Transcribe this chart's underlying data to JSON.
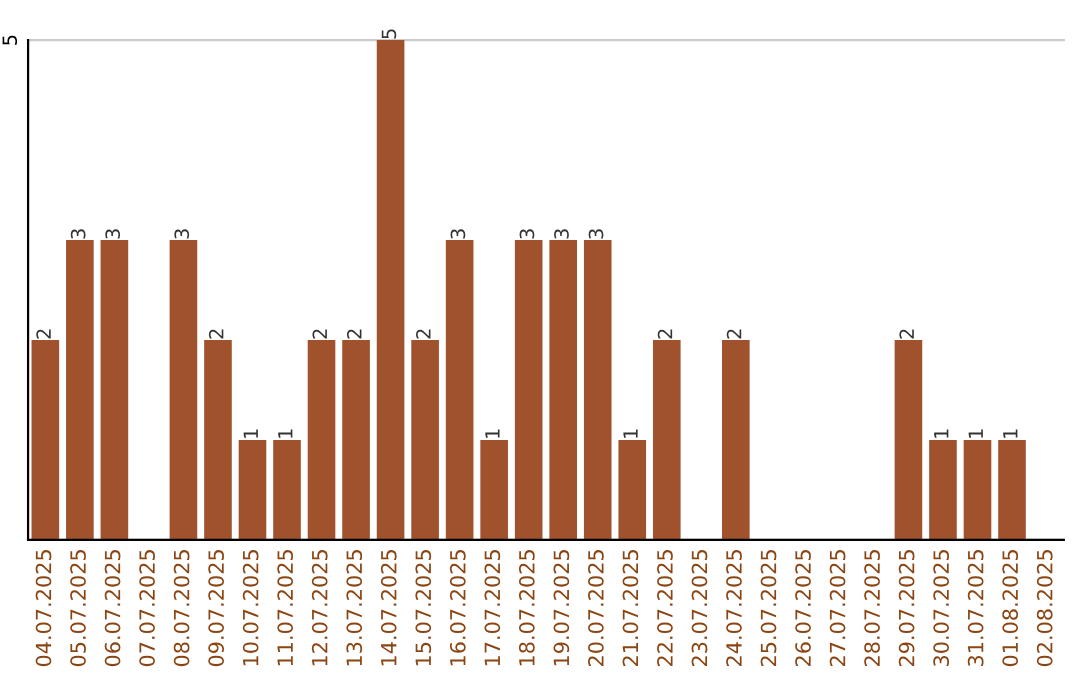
{
  "chart_data": {
    "type": "bar",
    "categories": [
      "04.07.2025",
      "05.07.2025",
      "06.07.2025",
      "07.07.2025",
      "08.07.2025",
      "09.07.2025",
      "10.07.2025",
      "11.07.2025",
      "12.07.2025",
      "13.07.2025",
      "14.07.2025",
      "15.07.2025",
      "16.07.2025",
      "17.07.2025",
      "18.07.2025",
      "19.07.2025",
      "20.07.2025",
      "21.07.2025",
      "22.07.2025",
      "23.07.2025",
      "24.07.2025",
      "25.07.2025",
      "26.07.2025",
      "27.07.2025",
      "28.07.2025",
      "29.07.2025",
      "30.07.2025",
      "31.07.2025",
      "01.08.2025",
      "02.08.2025"
    ],
    "values": [
      2,
      3,
      3,
      0,
      3,
      2,
      1,
      1,
      2,
      2,
      5,
      2,
      3,
      1,
      3,
      3,
      3,
      1,
      2,
      0,
      2,
      0,
      0,
      0,
      0,
      2,
      1,
      1,
      1,
      0
    ],
    "value_labels": [
      "2",
      "3",
      "3",
      null,
      "3",
      "2",
      "1",
      "1",
      "2",
      "2",
      "5",
      "2",
      "3",
      "1",
      "3",
      "3",
      "3",
      "1",
      "2",
      null,
      "2",
      null,
      null,
      null,
      null,
      "2",
      "1",
      "1",
      "1",
      null
    ],
    "color": "#a0522d",
    "ylim": [
      0,
      5
    ],
    "yticks": [
      {
        "value": 0,
        "label": null
      },
      5
    ],
    "grid": "y",
    "legend": false
  }
}
